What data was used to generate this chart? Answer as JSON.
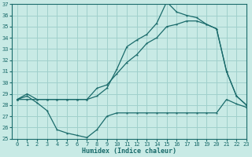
{
  "xlabel": "Humidex (Indice chaleur)",
  "bg_color": "#c8eae5",
  "grid_color": "#a0d0cc",
  "line_color": "#1a6b6b",
  "x_values": [
    0,
    1,
    2,
    3,
    4,
    5,
    6,
    7,
    8,
    9,
    10,
    11,
    12,
    13,
    14,
    15,
    16,
    17,
    18,
    19,
    20,
    21,
    22,
    23
  ],
  "line1": [
    28.5,
    28.8,
    28.2,
    27.5,
    25.8,
    25.5,
    25.3,
    25.1,
    25.8,
    27.0,
    27.3,
    27.3,
    27.3,
    27.3,
    27.3,
    27.3,
    27.3,
    27.3,
    27.3,
    27.3,
    27.3,
    28.5,
    28.1,
    27.8
  ],
  "line2": [
    28.5,
    29.0,
    28.5,
    28.5,
    28.5,
    28.5,
    28.5,
    28.5,
    28.8,
    29.5,
    31.2,
    33.2,
    33.8,
    34.3,
    35.3,
    37.2,
    36.3,
    36.0,
    35.8,
    35.2,
    34.8,
    31.0,
    28.8,
    28.0
  ],
  "line3": [
    28.5,
    28.5,
    28.5,
    28.5,
    28.5,
    28.5,
    28.5,
    28.5,
    29.5,
    29.8,
    30.8,
    31.8,
    32.5,
    33.5,
    34.0,
    35.0,
    35.2,
    35.5,
    35.5,
    35.2,
    34.8,
    31.0,
    28.8,
    28.0
  ],
  "ylim": [
    25,
    37
  ],
  "xlim": [
    -0.5,
    23
  ],
  "yticks": [
    25,
    26,
    27,
    28,
    29,
    30,
    31,
    32,
    33,
    34,
    35,
    36,
    37
  ],
  "xticks": [
    0,
    1,
    2,
    3,
    4,
    5,
    6,
    7,
    8,
    9,
    10,
    11,
    12,
    13,
    14,
    15,
    16,
    17,
    18,
    19,
    20,
    21,
    22,
    23
  ],
  "tick_fontsize": 5,
  "xlabel_fontsize": 6
}
